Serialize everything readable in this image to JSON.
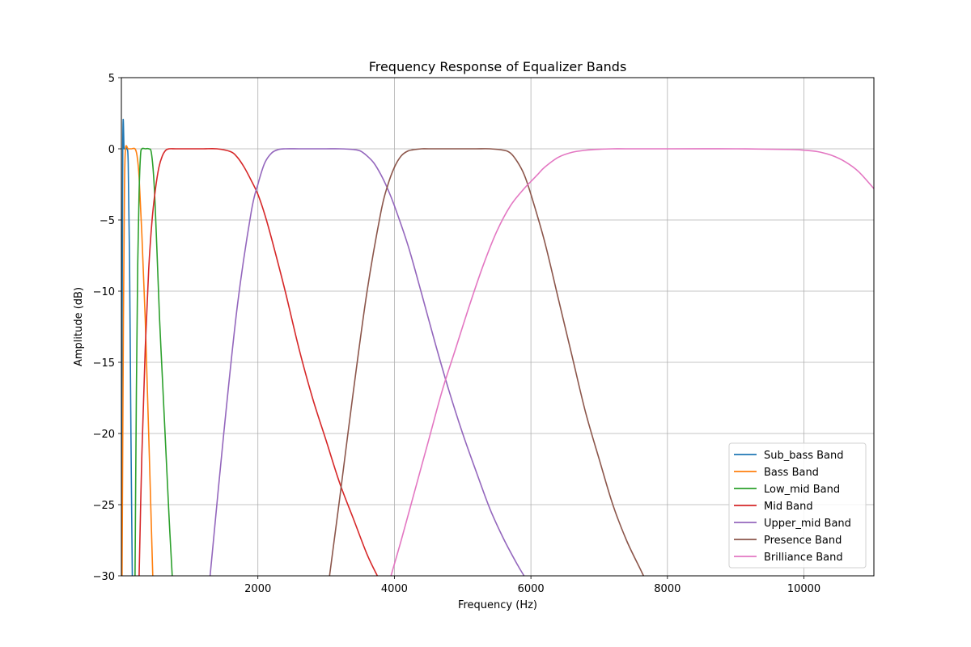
{
  "chart_data": {
    "type": "line",
    "title": "Frequency Response of Equalizer Bands",
    "xlabel": "Frequency (Hz)",
    "ylabel": "Amplitude (dB)",
    "xlim": [
      0,
      11025
    ],
    "ylim": [
      -30,
      5
    ],
    "x_ticks": [
      2000,
      4000,
      6000,
      8000,
      10000
    ],
    "x_tick_labels": [
      "2000",
      "4000",
      "6000",
      "8000",
      "10000"
    ],
    "y_ticks": [
      5,
      0,
      -5,
      -10,
      -15,
      -20,
      -25,
      -30
    ],
    "y_tick_labels": [
      "5",
      "0",
      "−5",
      "−10",
      "−15",
      "−20",
      "−25",
      "−30"
    ],
    "grid": true,
    "legend_position": "lower-right",
    "series": [
      {
        "name": "Sub_bass Band",
        "color": "#1f77b4",
        "x": [
          0,
          20,
          40,
          60,
          80,
          100,
          120,
          140,
          160
        ],
        "y": [
          -30,
          -0.2,
          0,
          0,
          0,
          -1,
          -8,
          -20,
          -30
        ]
      },
      {
        "name": "Bass Band",
        "color": "#ff7f0e",
        "x": [
          10,
          30,
          45,
          60,
          100,
          150,
          200,
          230,
          260,
          300,
          350,
          400,
          460
        ],
        "y": [
          -30,
          -12,
          -3,
          0,
          0,
          0,
          0,
          -0.5,
          -2,
          -6,
          -12,
          -20,
          -30
        ]
      },
      {
        "name": "Low_mid Band",
        "color": "#2ca02c",
        "x": [
          200,
          220,
          240,
          260,
          280,
          300,
          350,
          400,
          440,
          480,
          520,
          560,
          600,
          650,
          700,
          745
        ],
        "y": [
          -30,
          -17,
          -8,
          -3,
          -0.5,
          0,
          0,
          0,
          -0.3,
          -2.5,
          -7,
          -12,
          -16,
          -21,
          -26,
          -30
        ]
      },
      {
        "name": "Mid Band",
        "color": "#d62728",
        "x": [
          260,
          300,
          350,
          400,
          450,
          500,
          550,
          600,
          650,
          700,
          800,
          1000,
          1200,
          1400,
          1600,
          1700,
          1800,
          1900,
          2000,
          2100,
          2200,
          2400,
          2600,
          2800,
          3000,
          3200,
          3400,
          3600,
          3750
        ],
        "y": [
          -30,
          -21.5,
          -14,
          -8.5,
          -5,
          -2.8,
          -1.3,
          -0.5,
          -0.1,
          0,
          0,
          0,
          0,
          0,
          -0.2,
          -0.6,
          -1.3,
          -2.2,
          -3.2,
          -4.6,
          -6.3,
          -10,
          -14,
          -17.5,
          -20.5,
          -23.5,
          -26,
          -28.5,
          -30
        ]
      },
      {
        "name": "Upper_mid Band",
        "color": "#9467bd",
        "x": [
          1300,
          1500,
          1700,
          1900,
          2000,
          2100,
          2200,
          2300,
          2400,
          2600,
          2800,
          3000,
          3200,
          3400,
          3500,
          3600,
          3700,
          3800,
          3900,
          4000,
          4200,
          4400,
          4600,
          4800,
          5000,
          5200,
          5400,
          5600,
          5800,
          5900
        ],
        "y": [
          -30,
          -20,
          -11,
          -4.5,
          -2.5,
          -1,
          -0.3,
          -0.05,
          0,
          0,
          0,
          0,
          0,
          -0.05,
          -0.15,
          -0.5,
          -1,
          -1.8,
          -2.8,
          -4,
          -6.8,
          -10.2,
          -13.7,
          -17,
          -20,
          -22.7,
          -25.3,
          -27.4,
          -29.2,
          -30
        ]
      },
      {
        "name": "Presence Band",
        "color": "#8c564b",
        "x": [
          3050,
          3200,
          3400,
          3600,
          3800,
          3900,
          4000,
          4100,
          4200,
          4300,
          4400,
          4500,
          4800,
          5000,
          5200,
          5400,
          5600,
          5700,
          5800,
          5900,
          6000,
          6200,
          6400,
          6600,
          6800,
          7000,
          7200,
          7400,
          7600,
          7650
        ],
        "y": [
          -30,
          -24.5,
          -17,
          -10,
          -4.5,
          -2.6,
          -1.3,
          -0.5,
          -0.15,
          -0.05,
          0,
          0,
          0,
          0,
          0,
          0,
          -0.1,
          -0.3,
          -0.9,
          -1.8,
          -3.2,
          -6.5,
          -10.5,
          -14.5,
          -18.5,
          -21.8,
          -25,
          -27.5,
          -29.5,
          -30
        ]
      },
      {
        "name": "Brilliance Band",
        "color": "#e377c2",
        "x": [
          3950,
          4100,
          4300,
          4500,
          4700,
          4900,
          5100,
          5300,
          5500,
          5700,
          5900,
          6000,
          6100,
          6200,
          6400,
          6600,
          6800,
          7000,
          7200,
          7400,
          8000,
          9000,
          9800,
          10000,
          10200,
          10400,
          10600,
          10800,
          11025
        ],
        "y": [
          -30,
          -27.5,
          -24,
          -20.5,
          -17,
          -14,
          -11,
          -8.2,
          -5.8,
          -4,
          -2.8,
          -2.3,
          -1.8,
          -1.3,
          -0.6,
          -0.25,
          -0.1,
          -0.03,
          0,
          0,
          0,
          0,
          -0.05,
          -0.1,
          -0.2,
          -0.45,
          -0.9,
          -1.6,
          -2.8
        ]
      }
    ]
  }
}
